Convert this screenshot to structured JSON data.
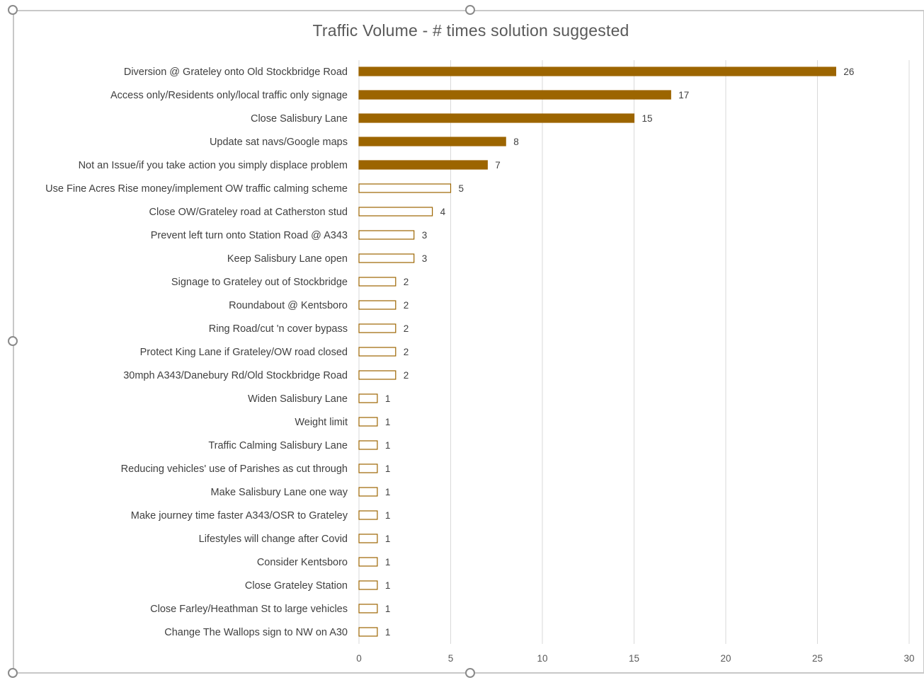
{
  "chart_data": {
    "type": "bar",
    "orientation": "horizontal",
    "title": "Traffic Volume  -  # times solution suggested",
    "xlabel": "",
    "ylabel": "",
    "xlim": [
      0,
      30
    ],
    "x_ticks": [
      0,
      5,
      10,
      15,
      20,
      25,
      30
    ],
    "grid": "vertical",
    "legend": "none",
    "highlight_count": 5,
    "colors": {
      "bar": "#9c6500",
      "grid": "#d9d9d9",
      "text": "#404040",
      "frame": "#c8c8c8"
    },
    "categories": [
      "Diversion @ Grateley onto Old Stockbridge Road",
      "Access only/Residents only/local traffic only signage",
      "Close Salisbury Lane",
      "Update sat navs/Google maps",
      "Not an Issue/if you take action you simply displace problem",
      "Use Fine Acres Rise money/implement OW traffic calming scheme",
      "Close OW/Grateley road at Catherston stud",
      "Prevent left turn onto Station Road @ A343",
      "Keep Salisbury Lane open",
      "Signage to Grateley out of Stockbridge",
      "Roundabout @ Kentsboro",
      "Ring Road/cut 'n cover bypass",
      "Protect King Lane if Grateley/OW road closed",
      "30mph A343/Danebury Rd/Old Stockbridge Road",
      "Widen Salisbury Lane",
      "Weight limit",
      "Traffic Calming Salisbury Lane",
      "Reducing vehicles' use of Parishes as cut through",
      "Make Salisbury Lane one way",
      "Make journey time faster A343/OSR to Grateley",
      "Lifestyles will change after Covid",
      "Consider Kentsboro",
      "Close Grateley Station",
      "Close Farley/Heathman St to large vehicles",
      "Change The Wallops sign to NW on A30"
    ],
    "values": [
      26,
      17,
      15,
      8,
      7,
      5,
      4,
      3,
      3,
      2,
      2,
      2,
      2,
      2,
      1,
      1,
      1,
      1,
      1,
      1,
      1,
      1,
      1,
      1,
      1
    ]
  }
}
